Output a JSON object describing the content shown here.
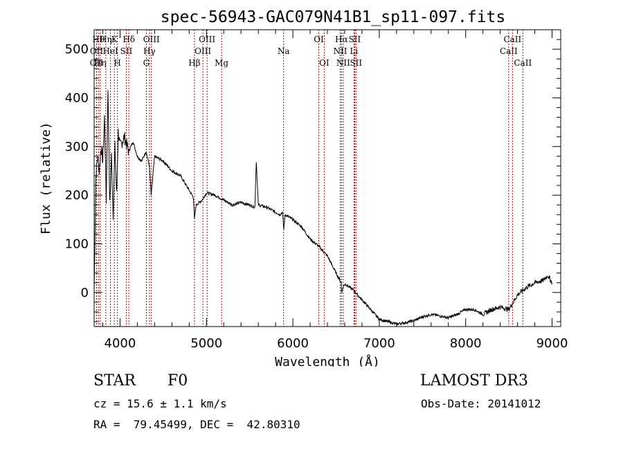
{
  "chart_data": {
    "type": "line",
    "title": "spec-56943-GAC079N41B1_sp11-097.fits",
    "xlabel": "Wavelength (Å)",
    "ylabel": "Flux (relative)",
    "xlim": [
      3700,
      9100
    ],
    "ylim": [
      -70,
      540
    ],
    "xticks": [
      4000,
      5000,
      6000,
      7000,
      8000,
      9000
    ],
    "yticks": [
      0,
      100,
      200,
      300,
      400,
      500
    ],
    "series": [
      {
        "name": "spectrum",
        "x": [
          3700,
          3720,
          3740,
          3760,
          3780,
          3800,
          3820,
          3840,
          3860,
          3880,
          3900,
          3920,
          3940,
          3960,
          3980,
          4000,
          4050,
          4100,
          4150,
          4200,
          4250,
          4300,
          4340,
          4360,
          4400,
          4500,
          4600,
          4700,
          4800,
          4850,
          4861,
          4880,
          4950,
          5000,
          5100,
          5200,
          5300,
          5400,
          5500,
          5560,
          5577,
          5600,
          5700,
          5800,
          5850,
          5880,
          5895,
          5910,
          6000,
          6100,
          6200,
          6300,
          6400,
          6500,
          6560,
          6563,
          6600,
          6700,
          6800,
          6900,
          7000,
          7100,
          7200,
          7300,
          7400,
          7500,
          7600,
          7700,
          7800,
          7900,
          8000,
          8100,
          8200,
          8300,
          8400,
          8500,
          8600,
          8700,
          8800,
          8900,
          8950,
          9000
        ],
        "y": [
          0,
          240,
          280,
          250,
          300,
          270,
          360,
          190,
          420,
          180,
          280,
          160,
          300,
          200,
          330,
          300,
          320,
          290,
          310,
          280,
          270,
          290,
          260,
          200,
          280,
          270,
          250,
          240,
          210,
          195,
          150,
          180,
          190,
          205,
          200,
          190,
          180,
          185,
          180,
          175,
          270,
          180,
          175,
          165,
          160,
          165,
          130,
          160,
          150,
          135,
          110,
          95,
          75,
          40,
          20,
          2,
          18,
          5,
          -15,
          -35,
          -55,
          -60,
          -65,
          -62,
          -58,
          -50,
          -45,
          -48,
          -52,
          -45,
          -35,
          -35,
          -45,
          -35,
          -30,
          -35,
          -5,
          10,
          20,
          25,
          35,
          20
        ]
      }
    ],
    "lines": [
      {
        "wl": 3750,
        "label": "Hθ",
        "row": 0
      },
      {
        "wl": 3728,
        "label": "OII",
        "row": 1
      },
      {
        "wl": 3727,
        "label": "OII",
        "row": 2
      },
      {
        "wl": 3770,
        "label": "Hη",
        "row": 2
      },
      {
        "wl": 3835,
        "label": "Hη",
        "row": 0
      },
      {
        "wl": 3889,
        "label": "HeI",
        "row": 1
      },
      {
        "wl": 3934,
        "label": "K",
        "row": 0
      },
      {
        "wl": 3969,
        "label": "H",
        "row": 2
      },
      {
        "wl": 4072,
        "label": "SII",
        "row": 1
      },
      {
        "wl": 4102,
        "label": "Hδ",
        "row": 0
      },
      {
        "wl": 4304,
        "label": "G",
        "row": 2
      },
      {
        "wl": 4340,
        "label": "Hγ",
        "row": 1
      },
      {
        "wl": 4363,
        "label": "OIII",
        "row": 0
      },
      {
        "wl": 4861,
        "label": "Hβ",
        "row": 2
      },
      {
        "wl": 4959,
        "label": "OIII",
        "row": 1
      },
      {
        "wl": 5007,
        "label": "OIII",
        "row": 0
      },
      {
        "wl": 5175,
        "label": "Mg",
        "row": 2
      },
      {
        "wl": 5893,
        "label": "Na",
        "row": 1
      },
      {
        "wl": 6300,
        "label": "OI",
        "row": 0
      },
      {
        "wl": 6363,
        "label": "OI",
        "row": 2
      },
      {
        "wl": 6548,
        "label": "NII",
        "row": 1
      },
      {
        "wl": 6563,
        "label": "Hα",
        "row": 0
      },
      {
        "wl": 6583,
        "label": "NII",
        "row": 2
      },
      {
        "wl": 6707,
        "label": "Li",
        "row": 1
      },
      {
        "wl": 6716,
        "label": "SII",
        "row": 0
      },
      {
        "wl": 6731,
        "label": "SII",
        "row": 2
      },
      {
        "wl": 8498,
        "label": "CaII",
        "row": 1
      },
      {
        "wl": 8542,
        "label": "CaII",
        "row": 0
      },
      {
        "wl": 8662,
        "label": "CaII",
        "row": 2
      }
    ]
  },
  "info": {
    "class": "STAR",
    "subclass": "F0",
    "survey": "LAMOST DR3",
    "cz": "cz = 15.6 ± 1.1 km/s",
    "obs_date": "Obs-Date: 20141012",
    "coords": "RA =  79.45499, DEC =  42.80310"
  }
}
